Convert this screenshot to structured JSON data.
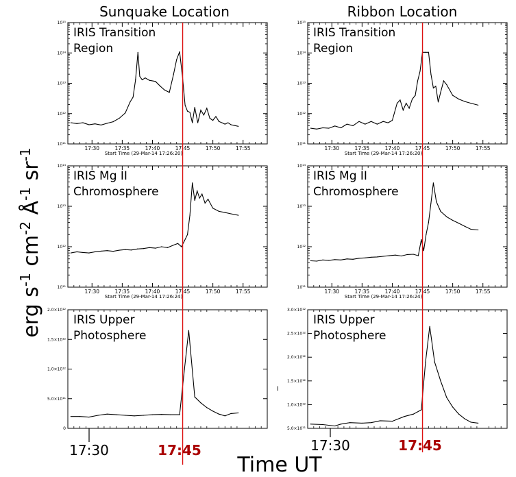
{
  "figure": {
    "column_titles": [
      "Sunquake Location",
      "Ribbon Location"
    ],
    "ylabel_parts": [
      {
        "t": "erg s",
        "s": "",
        "sup": "-1"
      },
      {
        "t": " cm",
        "sup": "-2"
      },
      {
        "t": " Å",
        "sup": "-1"
      },
      {
        "t": " sr",
        "sup": "-1"
      }
    ],
    "xlabel": "Time UT",
    "bottom_ticks": {
      "left": "17:30",
      "right": "17:45"
    },
    "stray_mark": "I"
  },
  "chart_data": [
    {
      "type": "line",
      "panel": "sunquake-transition",
      "label_lines": [
        "IRIS Transition",
        "Region"
      ],
      "x_start": "17:26:20",
      "xlim": [
        26,
        59
      ],
      "ylog": true,
      "ylim": [
        100000000000.0,
        1000000000000000.0
      ],
      "x_ticks": [
        {
          "v": 30,
          "l": "17:30"
        },
        {
          "v": 35,
          "l": "17:35"
        },
        {
          "v": 40,
          "l": "17:40"
        },
        {
          "v": 45,
          "l": "17:45"
        },
        {
          "v": 50,
          "l": "17:50"
        },
        {
          "v": 55,
          "l": "17:55"
        }
      ],
      "y_ticks": [
        {
          "v": 100000000000.0,
          "l": "10¹¹"
        },
        {
          "v": 1000000000000.0,
          "l": "10¹²"
        },
        {
          "v": 10000000000000.0,
          "l": "10¹³"
        },
        {
          "v": 100000000000000.0,
          "l": "10¹⁴"
        },
        {
          "v": 1000000000000000.0,
          "l": "10¹⁵"
        }
      ],
      "caption": "Start Time (29-Mar-14 17:26:20)",
      "x": [
        26.5,
        27.5,
        28.5,
        29.5,
        30.5,
        31.5,
        32.5,
        33.5,
        34.5,
        35.5,
        36.3,
        36.8,
        37.2,
        37.6,
        37.9,
        38.3,
        38.8,
        39.5,
        40.5,
        41.3,
        42.0,
        42.8,
        43.5,
        44.0,
        44.5,
        45.0,
        45.4,
        45.8,
        46.2,
        46.6,
        47.0,
        47.5,
        48.0,
        48.5,
        49.0,
        49.5,
        50.0,
        50.5,
        51.0,
        51.5,
        52.0,
        52.5,
        53.0,
        53.5,
        54.2
      ],
      "y": [
        500000000000.0,
        470000000000.0,
        500000000000.0,
        430000000000.0,
        460000000000.0,
        420000000000.0,
        480000000000.0,
        540000000000.0,
        700000000000.0,
        1050000000000.0,
        2400000000000.0,
        3500000000000.0,
        13000000000000.0,
        105000000000000.0,
        17000000000000.0,
        13000000000000.0,
        15000000000000.0,
        12500000000000.0,
        11500000000000.0,
        8000000000000.0,
        6000000000000.0,
        5000000000000.0,
        20000000000000.0,
        60000000000000.0,
        110000000000000.0,
        15000000000000.0,
        1900000000000.0,
        1200000000000.0,
        1100000000000.0,
        500000000000.0,
        1600000000000.0,
        500000000000.0,
        1300000000000.0,
        900000000000.0,
        1500000000000.0,
        700000000000.0,
        600000000000.0,
        800000000000.0,
        550000000000.0,
        500000000000.0,
        450000000000.0,
        500000000000.0,
        430000000000.0,
        410000000000.0,
        380000000000.0
      ]
    },
    {
      "type": "line",
      "panel": "ribbon-transition",
      "label_lines": [
        "IRIS Transition",
        "Region"
      ],
      "x_start": "17:26:20",
      "xlim": [
        26,
        59
      ],
      "ylog": true,
      "ylim": [
        100000000000.0,
        1000000000000000.0
      ],
      "x_ticks": [
        {
          "v": 30,
          "l": "17:30"
        },
        {
          "v": 35,
          "l": "17:35"
        },
        {
          "v": 40,
          "l": "17:40"
        },
        {
          "v": 45,
          "l": "17:45"
        },
        {
          "v": 50,
          "l": "17:50"
        },
        {
          "v": 55,
          "l": "17:55"
        }
      ],
      "y_ticks": [
        {
          "v": 100000000000.0,
          "l": "10¹¹"
        },
        {
          "v": 1000000000000.0,
          "l": "10¹²"
        },
        {
          "v": 10000000000000.0,
          "l": "10¹³"
        },
        {
          "v": 100000000000000.0,
          "l": "10¹⁴"
        },
        {
          "v": 1000000000000000.0,
          "l": "10¹⁵"
        }
      ],
      "caption": "Start Time (29-Mar-14 17:26:20)",
      "x": [
        26.5,
        27.5,
        28.5,
        29.5,
        30.5,
        31.5,
        32.5,
        33.5,
        34.5,
        35.5,
        36.5,
        37.5,
        38.5,
        39.3,
        40.0,
        40.8,
        41.3,
        41.8,
        42.3,
        42.8,
        43.3,
        43.8,
        44.2,
        44.6,
        45.0,
        45.5,
        46.0,
        46.4,
        46.8,
        47.2,
        47.6,
        48.0,
        48.5,
        49.0,
        50.0,
        51.0,
        52.0,
        53.0,
        54.2
      ],
      "y": [
        330000000000.0,
        310000000000.0,
        340000000000.0,
        330000000000.0,
        390000000000.0,
        340000000000.0,
        450000000000.0,
        400000000000.0,
        550000000000.0,
        450000000000.0,
        550000000000.0,
        450000000000.0,
        550000000000.0,
        500000000000.0,
        600000000000.0,
        2200000000000.0,
        2800000000000.0,
        1300000000000.0,
        2200000000000.0,
        1500000000000.0,
        3000000000000.0,
        4000000000000.0,
        12000000000000.0,
        25000000000000.0,
        105000000000000.0,
        105000000000000.0,
        105000000000000.0,
        20000000000000.0,
        7000000000000.0,
        8000000000000.0,
        2400000000000.0,
        5000000000000.0,
        12000000000000.0,
        9000000000000.0,
        4000000000000.0,
        3000000000000.0,
        2500000000000.0,
        2200000000000.0,
        1900000000000.0
      ]
    },
    {
      "type": "line",
      "panel": "sunquake-mg",
      "label_lines": [
        "IRIS Mg II",
        "Chromosphere"
      ],
      "x_start": "17:26:24",
      "xlim": [
        26,
        59
      ],
      "ylog": true,
      "ylim": [
        100000000000.0,
        100000000000000.0
      ],
      "x_ticks": [
        {
          "v": 30,
          "l": "17:30"
        },
        {
          "v": 35,
          "l": "17:35"
        },
        {
          "v": 40,
          "l": "17:40"
        },
        {
          "v": 45,
          "l": "17:45"
        },
        {
          "v": 50,
          "l": "17:50"
        },
        {
          "v": 55,
          "l": "17:55"
        }
      ],
      "y_ticks": [
        {
          "v": 100000000000.0,
          "l": "10¹¹"
        },
        {
          "v": 1000000000000.0,
          "l": "10¹²"
        },
        {
          "v": 10000000000000.0,
          "l": "10¹³"
        },
        {
          "v": 100000000000000.0,
          "l": "10¹⁴"
        }
      ],
      "caption": "Start Time (29-Mar-14 17:26:24)",
      "x": [
        26.5,
        27.5,
        28.5,
        29.5,
        30.5,
        31.5,
        32.5,
        33.5,
        34.5,
        35.5,
        36.5,
        37.5,
        38.5,
        39.5,
        40.5,
        41.5,
        42.5,
        43.5,
        44.2,
        44.8,
        45.3,
        45.8,
        46.2,
        46.6,
        47.0,
        47.4,
        47.8,
        48.2,
        48.7,
        49.2,
        50.0,
        51.0,
        52.0,
        53.0,
        54.2
      ],
      "y": [
        700000000000.0,
        750000000000.0,
        720000000000.0,
        700000000000.0,
        750000000000.0,
        780000000000.0,
        800000000000.0,
        770000000000.0,
        820000000000.0,
        850000000000.0,
        830000000000.0,
        880000000000.0,
        900000000000.0,
        950000000000.0,
        920000000000.0,
        1000000000000.0,
        950000000000.0,
        1100000000000.0,
        1200000000000.0,
        1000000000000.0,
        1400000000000.0,
        2000000000000.0,
        6000000000000.0,
        38000000000000.0,
        14000000000000.0,
        24000000000000.0,
        16000000000000.0,
        20000000000000.0,
        12000000000000.0,
        15000000000000.0,
        9000000000000.0,
        7500000000000.0,
        7000000000000.0,
        6500000000000.0,
        6000000000000.0
      ]
    },
    {
      "type": "line",
      "panel": "ribbon-mg",
      "label_lines": [
        "IRIS Mg II",
        "Chromosphere"
      ],
      "x_start": "17:26:24",
      "xlim": [
        26,
        59
      ],
      "ylog": true,
      "ylim": [
        100000000000.0,
        100000000000000.0
      ],
      "x_ticks": [
        {
          "v": 30,
          "l": "17:30"
        },
        {
          "v": 35,
          "l": "17:35"
        },
        {
          "v": 40,
          "l": "17:40"
        },
        {
          "v": 45,
          "l": "17:45"
        },
        {
          "v": 50,
          "l": "17:50"
        },
        {
          "v": 55,
          "l": "17:55"
        }
      ],
      "y_ticks": [
        {
          "v": 100000000000.0,
          "l": "10¹¹"
        },
        {
          "v": 1000000000000.0,
          "l": "10¹²"
        },
        {
          "v": 10000000000000.0,
          "l": "10¹³"
        },
        {
          "v": 100000000000000.0,
          "l": "10¹⁴"
        }
      ],
      "caption": "Start Time (29-Mar-14 17:26:24)",
      "x": [
        26.5,
        27.5,
        28.5,
        29.5,
        30.5,
        31.5,
        32.5,
        33.5,
        34.5,
        35.5,
        36.5,
        37.5,
        38.5,
        39.5,
        40.5,
        41.5,
        42.5,
        43.5,
        44.3,
        44.8,
        45.2,
        45.6,
        46.0,
        46.4,
        46.8,
        47.3,
        48.0,
        49.0,
        50.0,
        51.0,
        52.0,
        53.0,
        54.2
      ],
      "y": [
        450000000000.0,
        440000000000.0,
        470000000000.0,
        460000000000.0,
        480000000000.0,
        470000000000.0,
        500000000000.0,
        490000000000.0,
        520000000000.0,
        530000000000.0,
        550000000000.0,
        560000000000.0,
        580000000000.0,
        600000000000.0,
        620000000000.0,
        590000000000.0,
        640000000000.0,
        650000000000.0,
        600000000000.0,
        1500000000000.0,
        800000000000.0,
        2000000000000.0,
        4000000000000.0,
        12000000000000.0,
        38000000000000.0,
        13000000000000.0,
        7500000000000.0,
        5500000000000.0,
        4500000000000.0,
        3800000000000.0,
        3200000000000.0,
        2700000000000.0,
        2600000000000.0
      ]
    },
    {
      "type": "line",
      "panel": "sunquake-photo",
      "label_lines": [
        "IRIS Upper",
        "Photosphere"
      ],
      "x_start": "",
      "xlim": [
        26,
        59
      ],
      "ylog": false,
      "ylim": [
        0,
        2000000000000.0
      ],
      "x_ticks": [],
      "y_ticks": [
        {
          "v": 0,
          "l": "0"
        },
        {
          "v": 500000000000.0,
          "l": "5.0×10¹¹"
        },
        {
          "v": 1000000000000.0,
          "l": "1.0×10¹²"
        },
        {
          "v": 1500000000000.0,
          "l": "1.5×10¹²"
        },
        {
          "v": 2000000000000.0,
          "l": "2.0×10¹²"
        }
      ],
      "caption": "",
      "x": [
        26.5,
        28,
        29.5,
        31,
        32.5,
        34,
        35.5,
        37,
        38.5,
        40,
        41.5,
        43,
        44.5,
        45.3,
        46.0,
        47.0,
        48.0,
        49.0,
        50.0,
        51.0,
        52.0,
        53.0,
        54.2
      ],
      "y": [
        200000000000.0,
        200000000000.0,
        190000000000.0,
        220000000000.0,
        240000000000.0,
        230000000000.0,
        220000000000.0,
        210000000000.0,
        220000000000.0,
        230000000000.0,
        235000000000.0,
        230000000000.0,
        230000000000.0,
        1000000000000.0,
        1650000000000.0,
        530000000000.0,
        430000000000.0,
        350000000000.0,
        290000000000.0,
        240000000000.0,
        210000000000.0,
        250000000000.0,
        260000000000.0
      ]
    },
    {
      "type": "line",
      "panel": "ribbon-photo",
      "label_lines": [
        "IRIS Upper",
        "Photosphere"
      ],
      "x_start": "",
      "xlim": [
        26,
        59
      ],
      "ylog": false,
      "ylim": [
        500000000000.0,
        3000000000000.0
      ],
      "x_ticks": [],
      "y_ticks": [
        {
          "v": 500000000000.0,
          "l": "5.0×10¹¹"
        },
        {
          "v": 1000000000000.0,
          "l": "1.0×10¹²"
        },
        {
          "v": 1500000000000.0,
          "l": "1.5×10¹²"
        },
        {
          "v": 2000000000000.0,
          "l": "2.0×10¹²"
        },
        {
          "v": 2500000000000.0,
          "l": "2.5×10¹²"
        },
        {
          "v": 3000000000000.0,
          "l": "3.0×10¹²"
        }
      ],
      "caption": "",
      "x": [
        26.5,
        28.5,
        30.5,
        31.5,
        33,
        35,
        36.5,
        38,
        40,
        42,
        43.5,
        44.8,
        45.5,
        46.2,
        47.0,
        48.0,
        49.0,
        50.0,
        51.0,
        52.0,
        53.0,
        54.2
      ],
      "y": [
        590000000000.0,
        580000000000.0,
        550000000000.0,
        590000000000.0,
        620000000000.0,
        610000000000.0,
        620000000000.0,
        660000000000.0,
        650000000000.0,
        750000000000.0,
        800000000000.0,
        890000000000.0,
        1900000000000.0,
        2650000000000.0,
        1900000000000.0,
        1500000000000.0,
        1150000000000.0,
        950000000000.0,
        800000000000.0,
        700000000000.0,
        630000000000.0,
        610000000000.0
      ]
    }
  ],
  "marker": {
    "time_value": 45,
    "color": "#dd1111",
    "label_color": "#aa0000"
  }
}
